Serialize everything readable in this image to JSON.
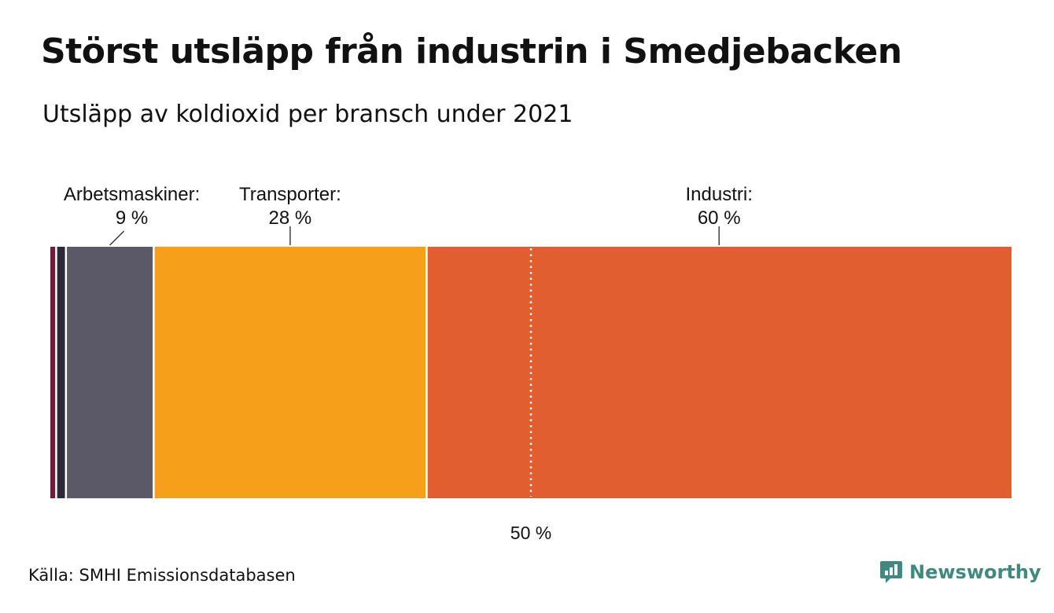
{
  "header": {
    "title": "Störst utsläpp från industrin i Smedjebacken",
    "subtitle": "Utsläpp av koldioxid per bransch under 2021"
  },
  "chart_data": {
    "type": "bar",
    "orientation": "horizontal-stacked",
    "xlim": [
      0,
      100
    ],
    "segments": [
      {
        "name": "",
        "value": 0.6,
        "color": "#6b1d3a"
      },
      {
        "name": "",
        "value": 1.0,
        "color": "#2c2a38"
      },
      {
        "name": "Arbetsmaskiner:",
        "value": 9,
        "label": "9 %",
        "color": "#5b5968"
      },
      {
        "name": "Transporter:",
        "value": 28,
        "label": "28 %",
        "color": "#f59f1b"
      },
      {
        "name": "Industri:",
        "value": 60,
        "label": "60 %",
        "color": "#e05e2f"
      }
    ],
    "reference_line": {
      "value": 50,
      "label": "50 %"
    }
  },
  "footer": {
    "source": "Källa: SMHI Emissionsdatabasen",
    "brand": "Newsworthy",
    "brand_icon": "newsworthy-logo-icon",
    "brand_color": "#3e8a7e"
  }
}
